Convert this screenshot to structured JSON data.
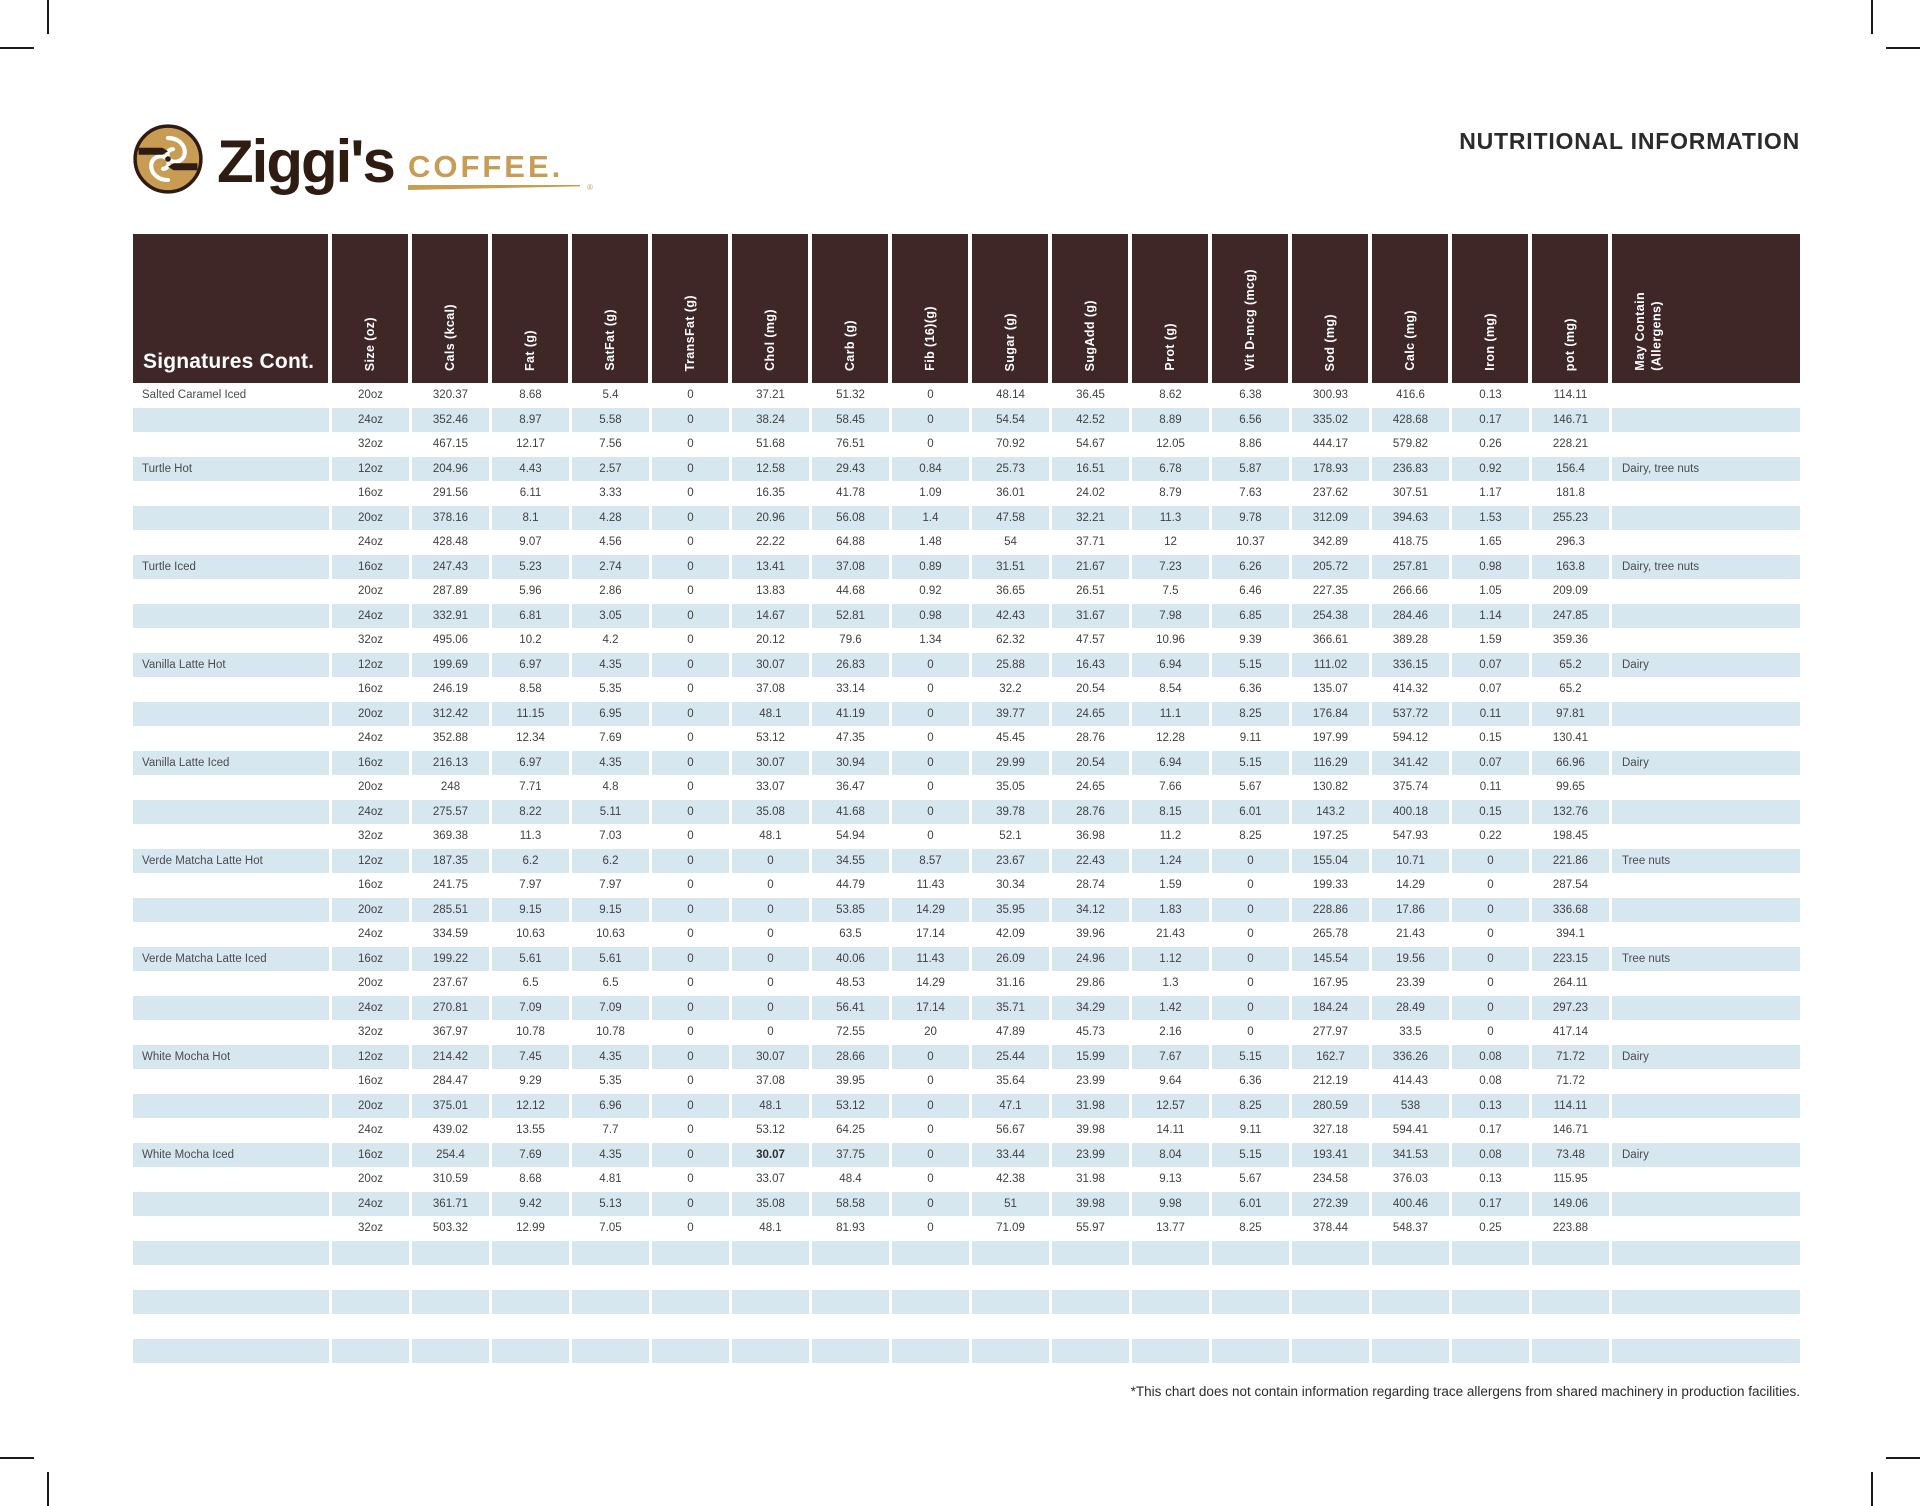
{
  "page": {
    "title": "NUTRITIONAL INFORMATION",
    "footnote": "*This chart does not contain information regarding trace allergens from shared machinery in production facilities."
  },
  "brand": {
    "name": "Ziggi's",
    "word": "COFFEE.",
    "registered_mark": "®",
    "colors": {
      "tan": "#c89c53",
      "dark_brown": "#2e1b12"
    }
  },
  "table": {
    "section_label": "Signatures Cont.",
    "colors": {
      "header_bg": "#3f2728",
      "stripe": "#d7e7f0",
      "text": "#414042"
    },
    "columns": [
      "Size (oz)",
      "Cals (kcal)",
      "Fat (g)",
      "SatFat (g)",
      "TransFat (g)",
      "Chol (mg)",
      "Carb (g)",
      "Fib (16)(g)",
      "Sugar (g)",
      "SugAdd (g)",
      "Prot (g)",
      "Vit D-mcg (mcg)",
      "Sod (mg)",
      "Calc (mg)",
      "Iron (mg)",
      "pot (mg)",
      "May Contain\n(Allergens)"
    ],
    "groups": [
      {
        "name": "Salted Caramel Iced",
        "rows": [
          {
            "size": "20oz",
            "values": [
              "320.37",
              "8.68",
              "5.4",
              "0",
              "37.21",
              "51.32",
              "0",
              "48.14",
              "36.45",
              "8.62",
              "6.38",
              "300.93",
              "416.6",
              "0.13",
              "114.11"
            ],
            "allergens": ""
          },
          {
            "size": "24oz",
            "values": [
              "352.46",
              "8.97",
              "5.58",
              "0",
              "38.24",
              "58.45",
              "0",
              "54.54",
              "42.52",
              "8.89",
              "6.56",
              "335.02",
              "428.68",
              "0.17",
              "146.71"
            ],
            "allergens": ""
          },
          {
            "size": "32oz",
            "values": [
              "467.15",
              "12.17",
              "7.56",
              "0",
              "51.68",
              "76.51",
              "0",
              "70.92",
              "54.67",
              "12.05",
              "8.86",
              "444.17",
              "579.82",
              "0.26",
              "228.21"
            ],
            "allergens": ""
          }
        ]
      },
      {
        "name": "Turtle Hot",
        "rows": [
          {
            "size": "12oz",
            "values": [
              "204.96",
              "4.43",
              "2.57",
              "0",
              "12.58",
              "29.43",
              "0.84",
              "25.73",
              "16.51",
              "6.78",
              "5.87",
              "178.93",
              "236.83",
              "0.92",
              "156.4"
            ],
            "allergens": "Dairy, tree nuts"
          },
          {
            "size": "16oz",
            "values": [
              "291.56",
              "6.11",
              "3.33",
              "0",
              "16.35",
              "41.78",
              "1.09",
              "36.01",
              "24.02",
              "8.79",
              "7.63",
              "237.62",
              "307.51",
              "1.17",
              "181.8"
            ],
            "allergens": ""
          },
          {
            "size": "20oz",
            "values": [
              "378.16",
              "8.1",
              "4.28",
              "0",
              "20.96",
              "56.08",
              "1.4",
              "47.58",
              "32.21",
              "11.3",
              "9.78",
              "312.09",
              "394.63",
              "1.53",
              "255.23"
            ],
            "allergens": ""
          },
          {
            "size": "24oz",
            "values": [
              "428.48",
              "9.07",
              "4.56",
              "0",
              "22.22",
              "64.88",
              "1.48",
              "54",
              "37.71",
              "12",
              "10.37",
              "342.89",
              "418.75",
              "1.65",
              "296.3"
            ],
            "allergens": ""
          }
        ]
      },
      {
        "name": "Turtle Iced",
        "rows": [
          {
            "size": "16oz",
            "values": [
              "247.43",
              "5.23",
              "2.74",
              "0",
              "13.41",
              "37.08",
              "0.89",
              "31.51",
              "21.67",
              "7.23",
              "6.26",
              "205.72",
              "257.81",
              "0.98",
              "163.8"
            ],
            "allergens": "Dairy, tree nuts"
          },
          {
            "size": "20oz",
            "values": [
              "287.89",
              "5.96",
              "2.86",
              "0",
              "13.83",
              "44.68",
              "0.92",
              "36.65",
              "26.51",
              "7.5",
              "6.46",
              "227.35",
              "266.66",
              "1.05",
              "209.09"
            ],
            "allergens": ""
          },
          {
            "size": "24oz",
            "values": [
              "332.91",
              "6.81",
              "3.05",
              "0",
              "14.67",
              "52.81",
              "0.98",
              "42.43",
              "31.67",
              "7.98",
              "6.85",
              "254.38",
              "284.46",
              "1.14",
              "247.85"
            ],
            "allergens": ""
          },
          {
            "size": "32oz",
            "values": [
              "495.06",
              "10.2",
              "4.2",
              "0",
              "20.12",
              "79.6",
              "1.34",
              "62.32",
              "47.57",
              "10.96",
              "9.39",
              "366.61",
              "389.28",
              "1.59",
              "359.36"
            ],
            "allergens": ""
          }
        ]
      },
      {
        "name": "Vanilla Latte Hot",
        "rows": [
          {
            "size": "12oz",
            "values": [
              "199.69",
              "6.97",
              "4.35",
              "0",
              "30.07",
              "26.83",
              "0",
              "25.88",
              "16.43",
              "6.94",
              "5.15",
              "111.02",
              "336.15",
              "0.07",
              "65.2"
            ],
            "allergens": "Dairy"
          },
          {
            "size": "16oz",
            "values": [
              "246.19",
              "8.58",
              "5.35",
              "0",
              "37.08",
              "33.14",
              "0",
              "32.2",
              "20.54",
              "8.54",
              "6.36",
              "135.07",
              "414.32",
              "0.07",
              "65.2"
            ],
            "allergens": ""
          },
          {
            "size": "20oz",
            "values": [
              "312.42",
              "11.15",
              "6.95",
              "0",
              "48.1",
              "41.19",
              "0",
              "39.77",
              "24.65",
              "11.1",
              "8.25",
              "176.84",
              "537.72",
              "0.11",
              "97.81"
            ],
            "allergens": ""
          },
          {
            "size": "24oz",
            "values": [
              "352.88",
              "12.34",
              "7.69",
              "0",
              "53.12",
              "47.35",
              "0",
              "45.45",
              "28.76",
              "12.28",
              "9.11",
              "197.99",
              "594.12",
              "0.15",
              "130.41"
            ],
            "allergens": ""
          }
        ]
      },
      {
        "name": "Vanilla Latte Iced",
        "rows": [
          {
            "size": "16oz",
            "values": [
              "216.13",
              "6.97",
              "4.35",
              "0",
              "30.07",
              "30.94",
              "0",
              "29.99",
              "20.54",
              "6.94",
              "5.15",
              "116.29",
              "341.42",
              "0.07",
              "66.96"
            ],
            "allergens": "Dairy"
          },
          {
            "size": "20oz",
            "values": [
              "248",
              "7.71",
              "4.8",
              "0",
              "33.07",
              "36.47",
              "0",
              "35.05",
              "24.65",
              "7.66",
              "5.67",
              "130.82",
              "375.74",
              "0.11",
              "99.65"
            ],
            "allergens": ""
          },
          {
            "size": "24oz",
            "values": [
              "275.57",
              "8.22",
              "5.11",
              "0",
              "35.08",
              "41.68",
              "0",
              "39.78",
              "28.76",
              "8.15",
              "6.01",
              "143.2",
              "400.18",
              "0.15",
              "132.76"
            ],
            "allergens": ""
          },
          {
            "size": "32oz",
            "values": [
              "369.38",
              "11.3",
              "7.03",
              "0",
              "48.1",
              "54.94",
              "0",
              "52.1",
              "36.98",
              "11.2",
              "8.25",
              "197.25",
              "547.93",
              "0.22",
              "198.45"
            ],
            "allergens": ""
          }
        ]
      },
      {
        "name": "Verde Matcha Latte Hot",
        "rows": [
          {
            "size": "12oz",
            "values": [
              "187.35",
              "6.2",
              "6.2",
              "0",
              "0",
              "34.55",
              "8.57",
              "23.67",
              "22.43",
              "1.24",
              "0",
              "155.04",
              "10.71",
              "0",
              "221.86"
            ],
            "allergens": "Tree nuts"
          },
          {
            "size": "16oz",
            "values": [
              "241.75",
              "7.97",
              "7.97",
              "0",
              "0",
              "44.79",
              "11.43",
              "30.34",
              "28.74",
              "1.59",
              "0",
              "199.33",
              "14.29",
              "0",
              "287.54"
            ],
            "allergens": ""
          },
          {
            "size": "20oz",
            "values": [
              "285.51",
              "9.15",
              "9.15",
              "0",
              "0",
              "53.85",
              "14.29",
              "35.95",
              "34.12",
              "1.83",
              "0",
              "228.86",
              "17.86",
              "0",
              "336.68"
            ],
            "allergens": ""
          },
          {
            "size": "24oz",
            "values": [
              "334.59",
              "10.63",
              "10.63",
              "0",
              "0",
              "63.5",
              "17.14",
              "42.09",
              "39.96",
              "21.43",
              "0",
              "265.78",
              "21.43",
              "0",
              "394.1"
            ],
            "allergens": ""
          }
        ]
      },
      {
        "name": "Verde Matcha Latte Iced",
        "rows": [
          {
            "size": "16oz",
            "values": [
              "199.22",
              "5.61",
              "5.61",
              "0",
              "0",
              "40.06",
              "11.43",
              "26.09",
              "24.96",
              "1.12",
              "0",
              "145.54",
              "19.56",
              "0",
              "223.15"
            ],
            "allergens": "Tree nuts"
          },
          {
            "size": "20oz",
            "values": [
              "237.67",
              "6.5",
              "6.5",
              "0",
              "0",
              "48.53",
              "14.29",
              "31.16",
              "29.86",
              "1.3",
              "0",
              "167.95",
              "23.39",
              "0",
              "264.11"
            ],
            "allergens": ""
          },
          {
            "size": "24oz",
            "values": [
              "270.81",
              "7.09",
              "7.09",
              "0",
              "0",
              "56.41",
              "17.14",
              "35.71",
              "34.29",
              "1.42",
              "0",
              "184.24",
              "28.49",
              "0",
              "297.23"
            ],
            "allergens": ""
          },
          {
            "size": "32oz",
            "values": [
              "367.97",
              "10.78",
              "10.78",
              "0",
              "0",
              "72.55",
              "20",
              "47.89",
              "45.73",
              "2.16",
              "0",
              "277.97",
              "33.5",
              "0",
              "417.14"
            ],
            "allergens": ""
          }
        ]
      },
      {
        "name": "White Mocha Hot",
        "rows": [
          {
            "size": "12oz",
            "values": [
              "214.42",
              "7.45",
              "4.35",
              "0",
              "30.07",
              "28.66",
              "0",
              "25.44",
              "15.99",
              "7.67",
              "5.15",
              "162.7",
              "336.26",
              "0.08",
              "71.72"
            ],
            "allergens": "Dairy"
          },
          {
            "size": "16oz",
            "values": [
              "284.47",
              "9.29",
              "5.35",
              "0",
              "37.08",
              "39.95",
              "0",
              "35.64",
              "23.99",
              "9.64",
              "6.36",
              "212.19",
              "414.43",
              "0.08",
              "71.72"
            ],
            "allergens": ""
          },
          {
            "size": "20oz",
            "values": [
              "375.01",
              "12.12",
              "6.96",
              "0",
              "48.1",
              "53.12",
              "0",
              "47.1",
              "31.98",
              "12.57",
              "8.25",
              "280.59",
              "538",
              "0.13",
              "114.11"
            ],
            "allergens": ""
          },
          {
            "size": "24oz",
            "values": [
              "439.02",
              "13.55",
              "7.7",
              "0",
              "53.12",
              "64.25",
              "0",
              "56.67",
              "39.98",
              "14.11",
              "9.11",
              "327.18",
              "594.41",
              "0.17",
              "146.71"
            ],
            "allergens": ""
          }
        ]
      },
      {
        "name": "White Mocha Iced",
        "rows": [
          {
            "size": "16oz",
            "values": [
              "254.4",
              "7.69",
              "4.35",
              "0",
              "30.07",
              "37.75",
              "0",
              "33.44",
              "23.99",
              "8.04",
              "5.15",
              "193.41",
              "341.53",
              "0.08",
              "73.48"
            ],
            "allergens": "Dairy",
            "bold_col": 4
          },
          {
            "size": "20oz",
            "values": [
              "310.59",
              "8.68",
              "4.81",
              "0",
              "33.07",
              "48.4",
              "0",
              "42.38",
              "31.98",
              "9.13",
              "5.67",
              "234.58",
              "376.03",
              "0.13",
              "115.95"
            ],
            "allergens": ""
          },
          {
            "size": "24oz",
            "values": [
              "361.71",
              "9.42",
              "5.13",
              "0",
              "35.08",
              "58.58",
              "0",
              "51",
              "39.98",
              "9.98",
              "6.01",
              "272.39",
              "400.46",
              "0.17",
              "149.06"
            ],
            "allergens": ""
          },
          {
            "size": "32oz",
            "values": [
              "503.32",
              "12.99",
              "7.05",
              "0",
              "48.1",
              "81.93",
              "0",
              "71.09",
              "55.97",
              "13.77",
              "8.25",
              "378.44",
              "548.37",
              "0.25",
              "223.88"
            ],
            "allergens": ""
          }
        ]
      }
    ],
    "empty_rows": 5
  }
}
